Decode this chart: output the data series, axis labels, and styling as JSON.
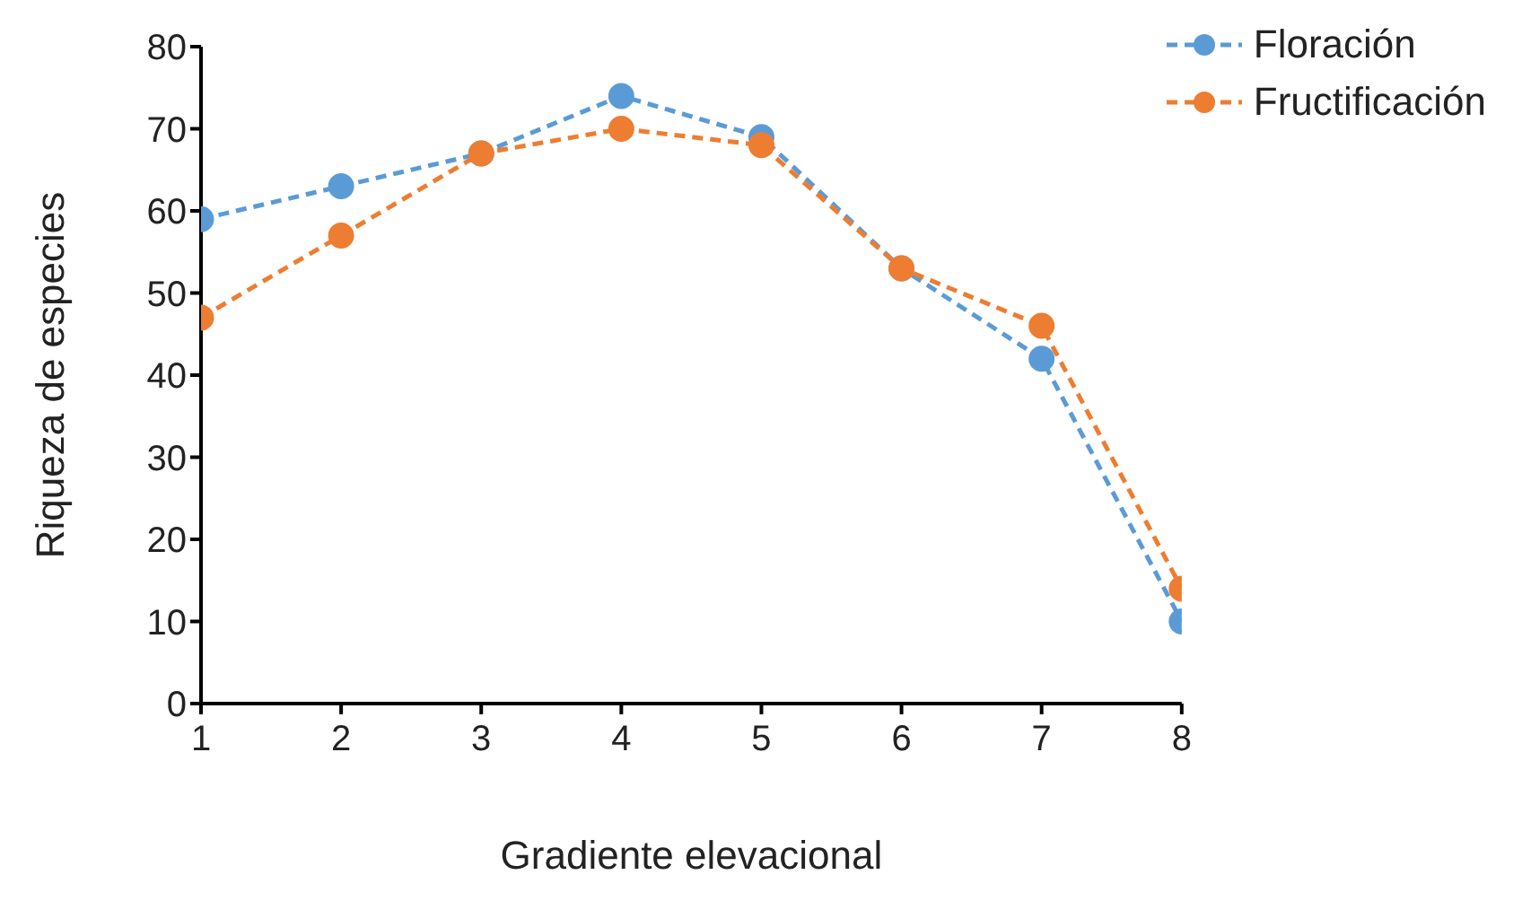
{
  "chart_data": {
    "type": "line",
    "xlabel": "Gradiente elevacional",
    "ylabel": "Riqueza de especies",
    "x": [
      1,
      2,
      3,
      4,
      5,
      6,
      7,
      8
    ],
    "series": [
      {
        "name": "Floración",
        "color": "#5b9bd5",
        "values": [
          59,
          63,
          67,
          74,
          69,
          53,
          42,
          10
        ]
      },
      {
        "name": "Fructificación",
        "color": "#ed7d31",
        "values": [
          47,
          57,
          67,
          70,
          68,
          53,
          46,
          14
        ]
      }
    ],
    "xlim": [
      1,
      8
    ],
    "xticks": [
      1,
      2,
      3,
      4,
      5,
      6,
      7,
      8
    ],
    "ylim": [
      0,
      80
    ],
    "yticks": [
      0,
      10,
      20,
      30,
      40,
      50,
      60,
      70,
      80
    ],
    "grid": false,
    "legend": "top right",
    "marker": "circle",
    "line_style": "dashed"
  }
}
